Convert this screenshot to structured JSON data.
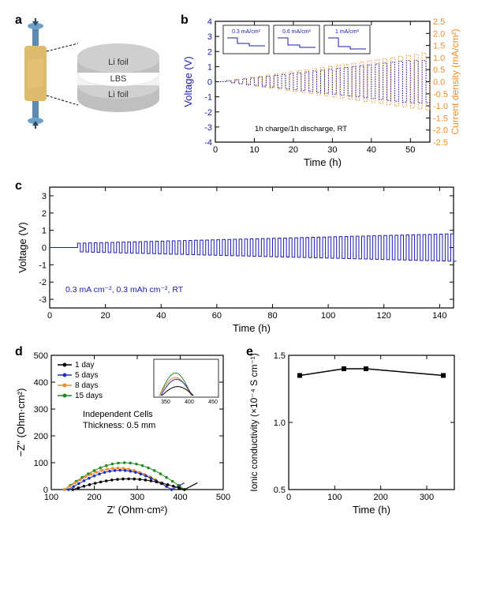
{
  "panelA": {
    "labels": [
      "Li foil",
      "LBS",
      "Li foil"
    ],
    "foilColor": "#bfbfbf",
    "lbsColor": "#f2f2f2",
    "clampColor": "#d4a94a",
    "screwColor": "#5b8bb2"
  },
  "panelB": {
    "title": "b",
    "xlabel": "Time (h)",
    "ylabelLeft": "Voltage (V)",
    "ylabelRight": "Current density (mA/cm²)",
    "leftColor": "#1b1bb0",
    "rightColor": "#f28c28",
    "xlim": [
      0,
      55
    ],
    "xtick_step": 10,
    "ylimL": [
      -4,
      4
    ],
    "ytickL_step": 1,
    "ylimR": [
      -2.5,
      2.5
    ],
    "ytickR_step": 0.5,
    "note": "1h charge/1h discharge, RT",
    "insets": [
      "0.3 mA/cm²",
      "0.6 mA/cm²",
      "1 mA/cm²"
    ]
  },
  "panelC": {
    "title": "c",
    "xlabel": "Time (h)",
    "ylabel": "Voltage (V)",
    "color": "#1b1bb0",
    "xlim": [
      0,
      145
    ],
    "xtick_step": 20,
    "ylim": [
      -3.5,
      3.5
    ],
    "ytick_step": 1,
    "note": "0.3 mA cm⁻², 0.3 mAh cm⁻², RT"
  },
  "panelD": {
    "title": "d",
    "xlabel": "Z' (Ohm·cm²)",
    "ylabel": "−Z'' (Ohm·cm²)",
    "xlim": [
      100,
      500
    ],
    "xtick_step": 100,
    "ylim": [
      0,
      500
    ],
    "ytick_step": 100,
    "legend": [
      {
        "label": "1 day",
        "color": "#000000"
      },
      {
        "label": "5 days",
        "color": "#2030c0"
      },
      {
        "label": "8 days",
        "color": "#f28c28"
      },
      {
        "label": "15 days",
        "color": "#228b22"
      }
    ],
    "note1": "Independent Cells",
    "note2": "Thickness: 0.5 mm"
  },
  "panelE": {
    "title": "e",
    "xlabel": "Time (h)",
    "ylabel": "Ionic conductivity (×10⁻⁴ S cm⁻¹)",
    "xlim": [
      0,
      360
    ],
    "xtick_step": 100,
    "ylim": [
      0.5,
      1.5
    ],
    "ytick_step": 0.5,
    "color": "#000000",
    "data": [
      [
        24,
        1.35
      ],
      [
        120,
        1.4
      ],
      [
        168,
        1.4
      ],
      [
        336,
        1.35
      ]
    ]
  }
}
